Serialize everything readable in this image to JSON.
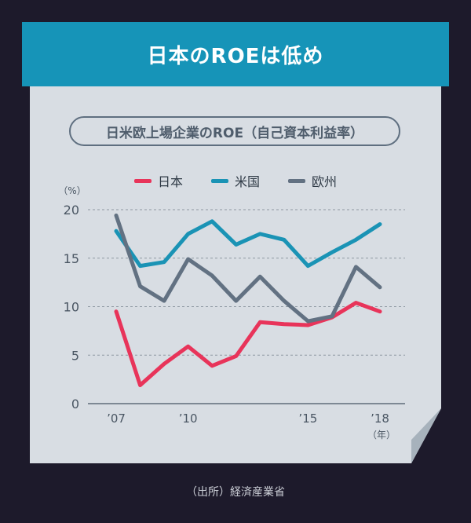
{
  "banner": {
    "title": "日本のROEは低め"
  },
  "subtitle": "日米欧上場企業のROE（自己資本利益率）",
  "source": "（出所）経済産業省",
  "chart_data": {
    "type": "line",
    "ylabel": "（%）",
    "xlabel": "（年）",
    "ylim": [
      0,
      20
    ],
    "yticks": [
      0,
      5,
      10,
      15,
      20
    ],
    "x": [
      2007,
      2008,
      2009,
      2010,
      2011,
      2012,
      2013,
      2014,
      2015,
      2016,
      2017,
      2018
    ],
    "xticks": [
      {
        "value": 2007,
        "label": "’07"
      },
      {
        "value": 2010,
        "label": "’10"
      },
      {
        "value": 2015,
        "label": "’15"
      },
      {
        "value": 2018,
        "label": "’18"
      }
    ],
    "grid": true,
    "legend_position": "top-center",
    "series": [
      {
        "name": "日本",
        "color": "#e8345a",
        "values": [
          9.5,
          1.9,
          4.1,
          5.9,
          3.9,
          4.9,
          8.4,
          8.2,
          8.1,
          8.9,
          10.4,
          9.5
        ]
      },
      {
        "name": "米国",
        "color": "#1a93b5",
        "values": [
          17.8,
          14.2,
          14.6,
          17.5,
          18.8,
          16.4,
          17.5,
          16.9,
          14.2,
          15.6,
          16.9,
          18.5
        ]
      },
      {
        "name": "欧州",
        "color": "#627182",
        "values": [
          19.4,
          12.1,
          10.6,
          14.9,
          13.2,
          10.6,
          13.1,
          10.6,
          8.5,
          9.0,
          14.1,
          12.0
        ]
      }
    ]
  }
}
